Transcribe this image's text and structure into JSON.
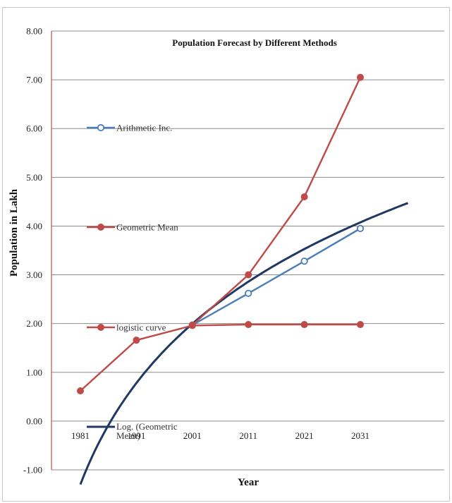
{
  "chart_data": {
    "type": "line",
    "title": "Population Forecast by Different Methods",
    "xlabel": "Year",
    "ylabel": "Population in Lakh",
    "categories": [
      "1981",
      "1991",
      "2001",
      "2011",
      "2021",
      "2031"
    ],
    "yticks": [
      "-1.00",
      "0.00",
      "1.00",
      "2.00",
      "3.00",
      "4.00",
      "5.00",
      "6.00",
      "7.00",
      "8.00"
    ],
    "ylim": [
      -1,
      8
    ],
    "grid": true,
    "series": [
      {
        "name": "Arithmetic Inc.",
        "values": [
          null,
          null,
          1.97,
          2.62,
          3.28,
          3.95
        ],
        "color": "#4a7ebb",
        "marker": "circle-open"
      },
      {
        "name": "Geometric Mean",
        "values": [
          null,
          null,
          1.97,
          3.0,
          4.6,
          7.05
        ],
        "color": "#be4b48",
        "marker": "circle"
      },
      {
        "name": "logistic curve",
        "values": [
          0.62,
          1.66,
          1.96,
          1.98,
          1.98,
          1.98
        ],
        "color": "#be4b48",
        "marker": "circle"
      },
      {
        "name": "Log. (Geometric Mean)",
        "type": "trendline",
        "color": "#1f3864",
        "x_start": 1981,
        "x_end": 2039.5,
        "a": 3.0,
        "b": 1.3
      }
    ]
  }
}
